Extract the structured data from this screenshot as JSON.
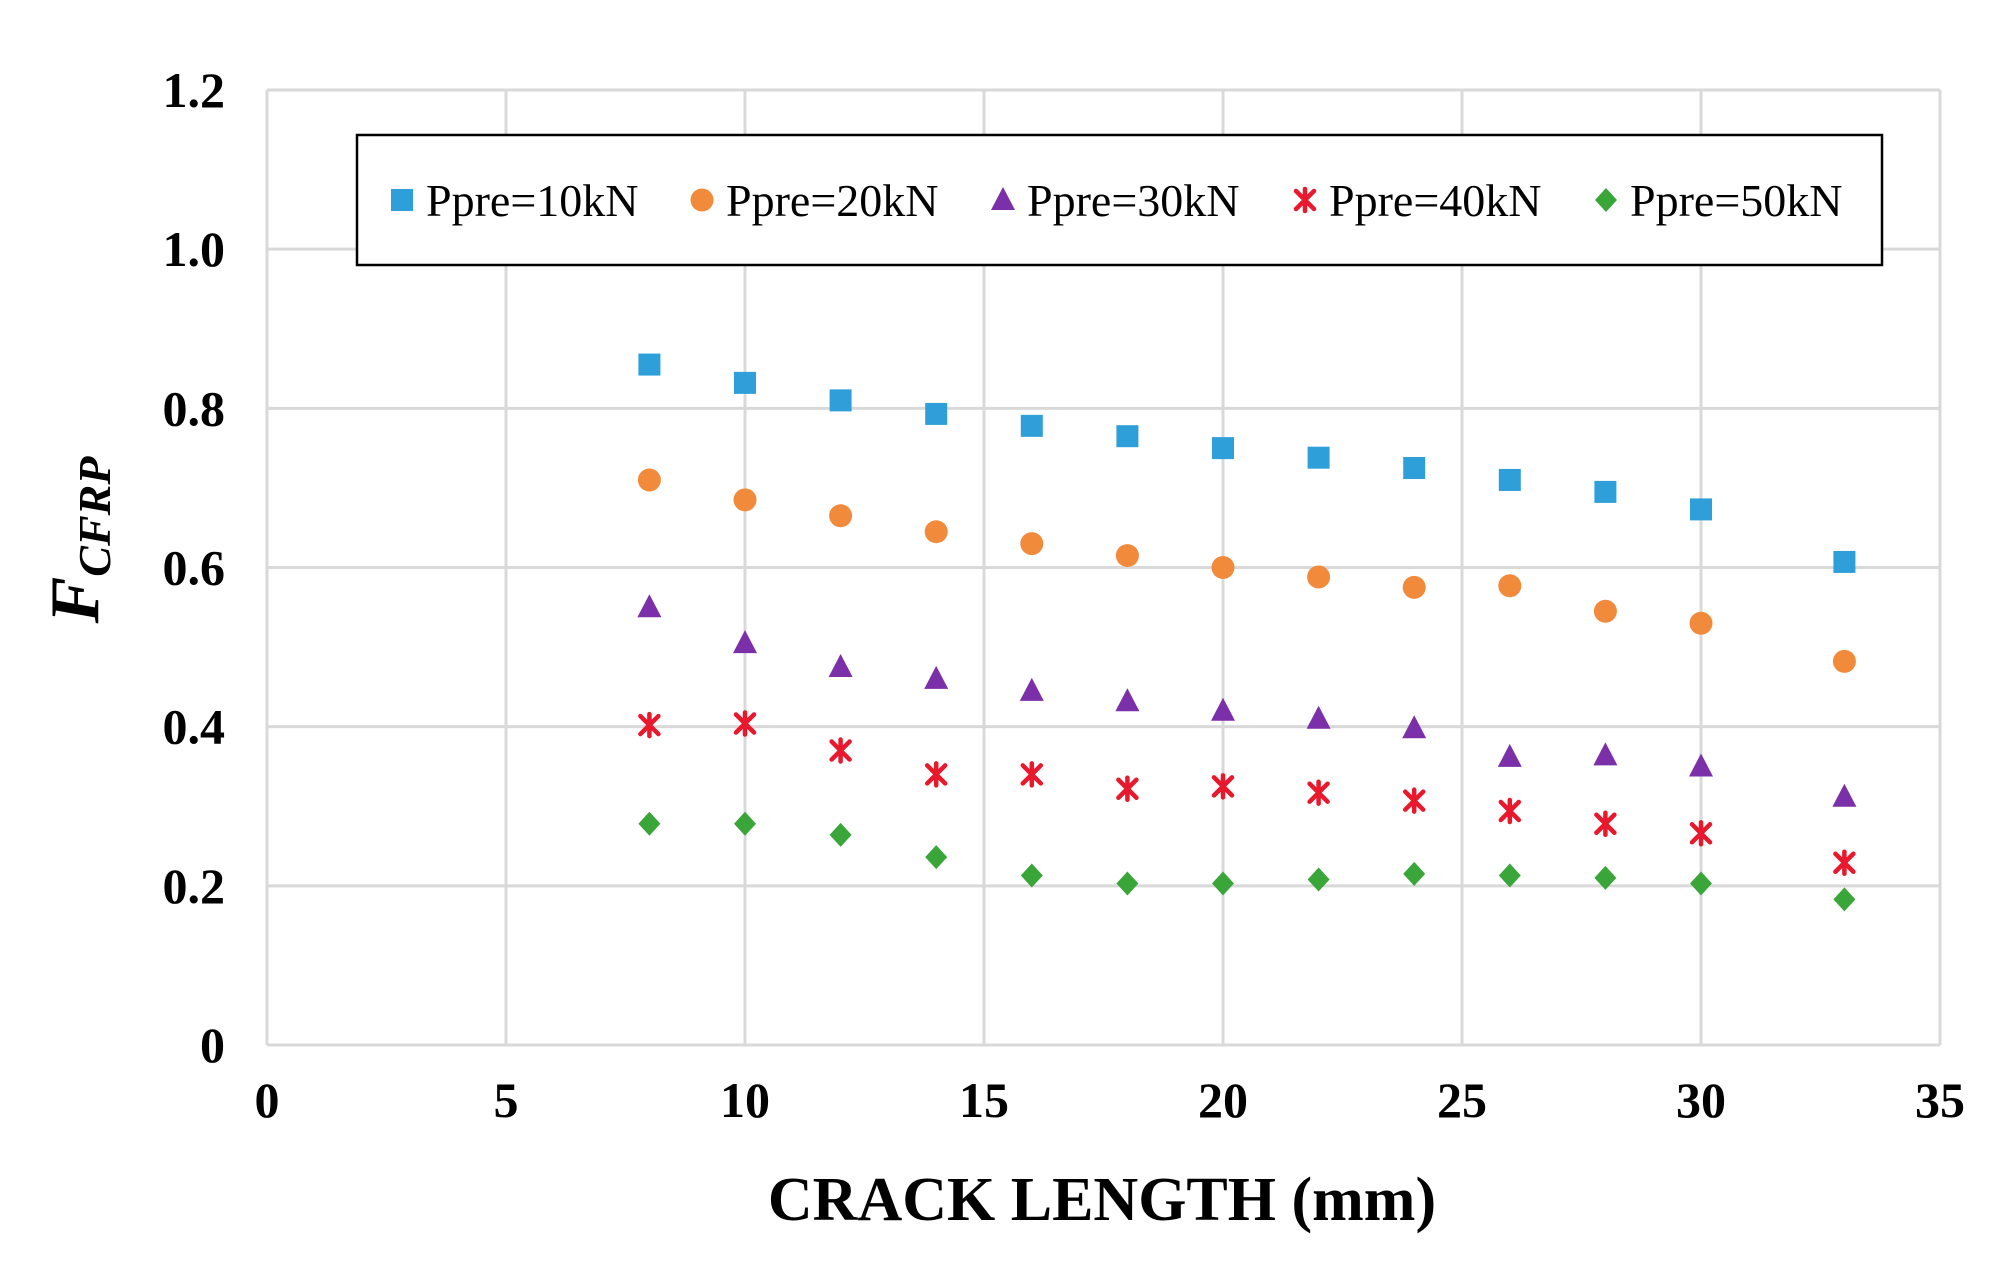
{
  "chart_data": {
    "type": "scatter",
    "title": "",
    "xlabel": "CRACK LENGTH (mm)",
    "ylabel": {
      "main": "F",
      "subscript": "CFRP"
    },
    "xlim": [
      0,
      35
    ],
    "ylim": [
      0,
      1.2
    ],
    "x_ticks": [
      "0",
      "5",
      "10",
      "15",
      "20",
      "25",
      "30",
      "35"
    ],
    "y_ticks": [
      "0",
      "0.2",
      "0.4",
      "0.6",
      "0.8",
      "1.0",
      "1.2"
    ],
    "grid": true,
    "legend_position": "top",
    "x": [
      8,
      10,
      12,
      14,
      16,
      18,
      20,
      22,
      24,
      26,
      28,
      30,
      33
    ],
    "series": [
      {
        "name": "Ppre=10kN",
        "marker": "square",
        "color": "#2e9fd9",
        "values": [
          0.855,
          0.832,
          0.81,
          0.793,
          0.778,
          0.765,
          0.75,
          0.738,
          0.725,
          0.71,
          0.695,
          0.673,
          0.607
        ]
      },
      {
        "name": "Ppre=20kN",
        "marker": "circle",
        "color": "#f28a3c",
        "values": [
          0.71,
          0.685,
          0.665,
          0.645,
          0.63,
          0.615,
          0.6,
          0.588,
          0.575,
          0.577,
          0.545,
          0.53,
          0.482
        ]
      },
      {
        "name": "Ppre=30kN",
        "marker": "triangle",
        "color": "#7b2fa8",
        "values": [
          0.55,
          0.505,
          0.475,
          0.46,
          0.445,
          0.432,
          0.42,
          0.41,
          0.398,
          0.362,
          0.364,
          0.35,
          0.312
        ]
      },
      {
        "name": "Ppre=40kN",
        "marker": "star",
        "color": "#e8192c",
        "values": [
          0.402,
          0.404,
          0.37,
          0.34,
          0.34,
          0.322,
          0.325,
          0.317,
          0.307,
          0.294,
          0.278,
          0.266,
          0.229
        ]
      },
      {
        "name": "Ppre=50kN",
        "marker": "diamond",
        "color": "#3aa63a",
        "values": [
          0.278,
          0.278,
          0.264,
          0.236,
          0.213,
          0.203,
          0.203,
          0.208,
          0.215,
          0.213,
          0.21,
          0.203,
          0.183
        ]
      }
    ]
  }
}
